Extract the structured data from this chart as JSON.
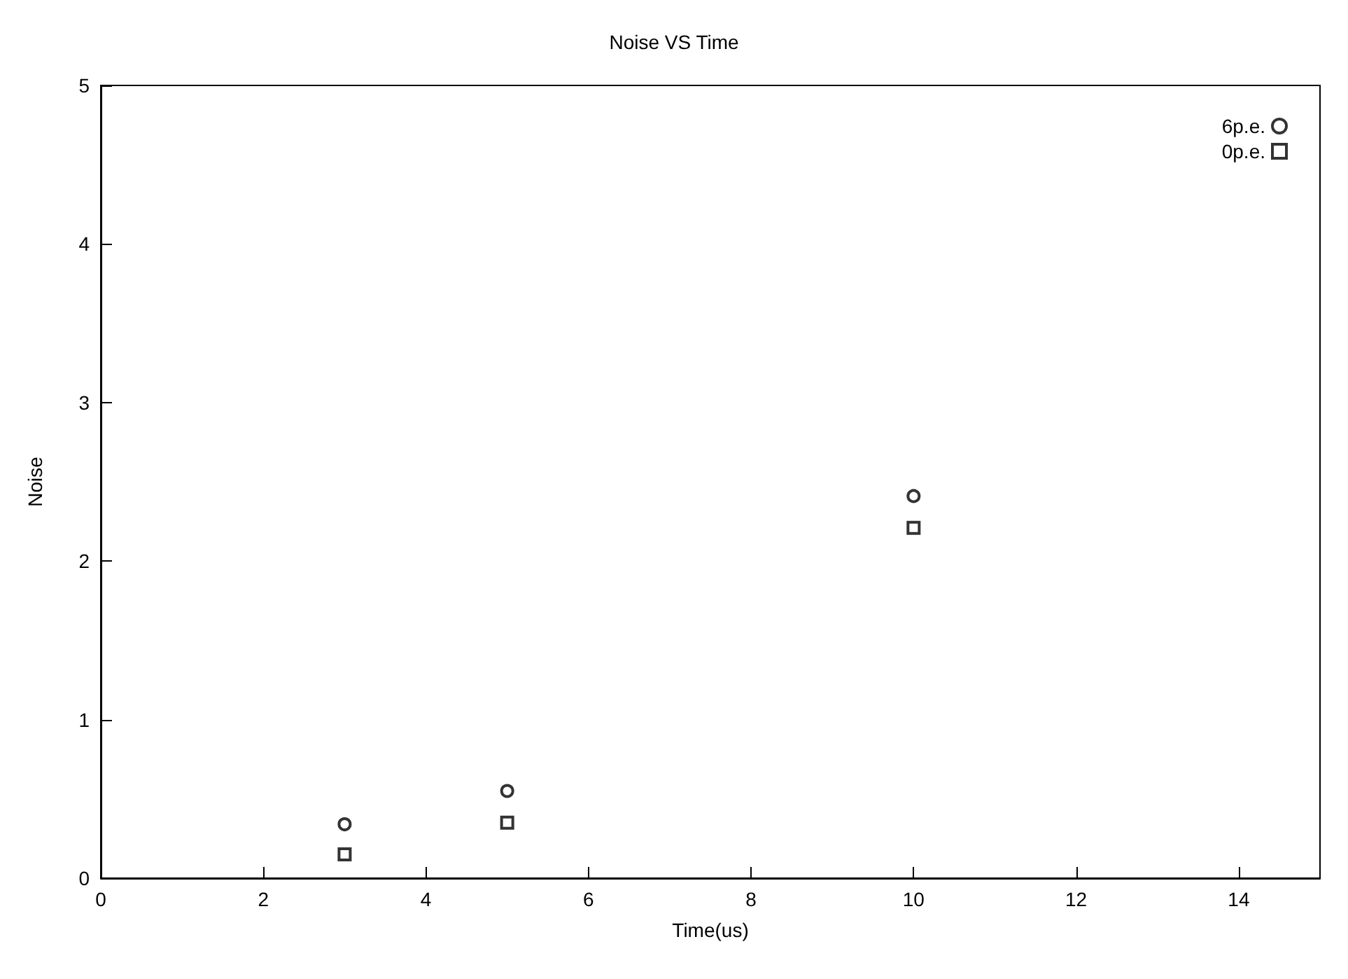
{
  "chart_data": {
    "type": "scatter",
    "title": "Noise VS Time",
    "xlabel": "Time(us)",
    "ylabel": "Noise",
    "xlim": [
      0,
      15
    ],
    "xticks": [
      0,
      2,
      4,
      6,
      8,
      10,
      12,
      14
    ],
    "ylim": [
      0,
      5
    ],
    "yticks": [
      0,
      1,
      2,
      3,
      4,
      5
    ],
    "grid": false,
    "legend": "top right",
    "series": [
      {
        "name": "6p.e.",
        "color": "#000000",
        "marker": "circle",
        "x": [
          3,
          5,
          10
        ],
        "values": [
          0.34,
          0.55,
          2.41
        ]
      },
      {
        "name": "0p.e.",
        "color": "#000000",
        "marker": "square",
        "x": [
          3,
          5,
          10
        ],
        "values": [
          0.15,
          0.35,
          2.21
        ]
      }
    ]
  }
}
